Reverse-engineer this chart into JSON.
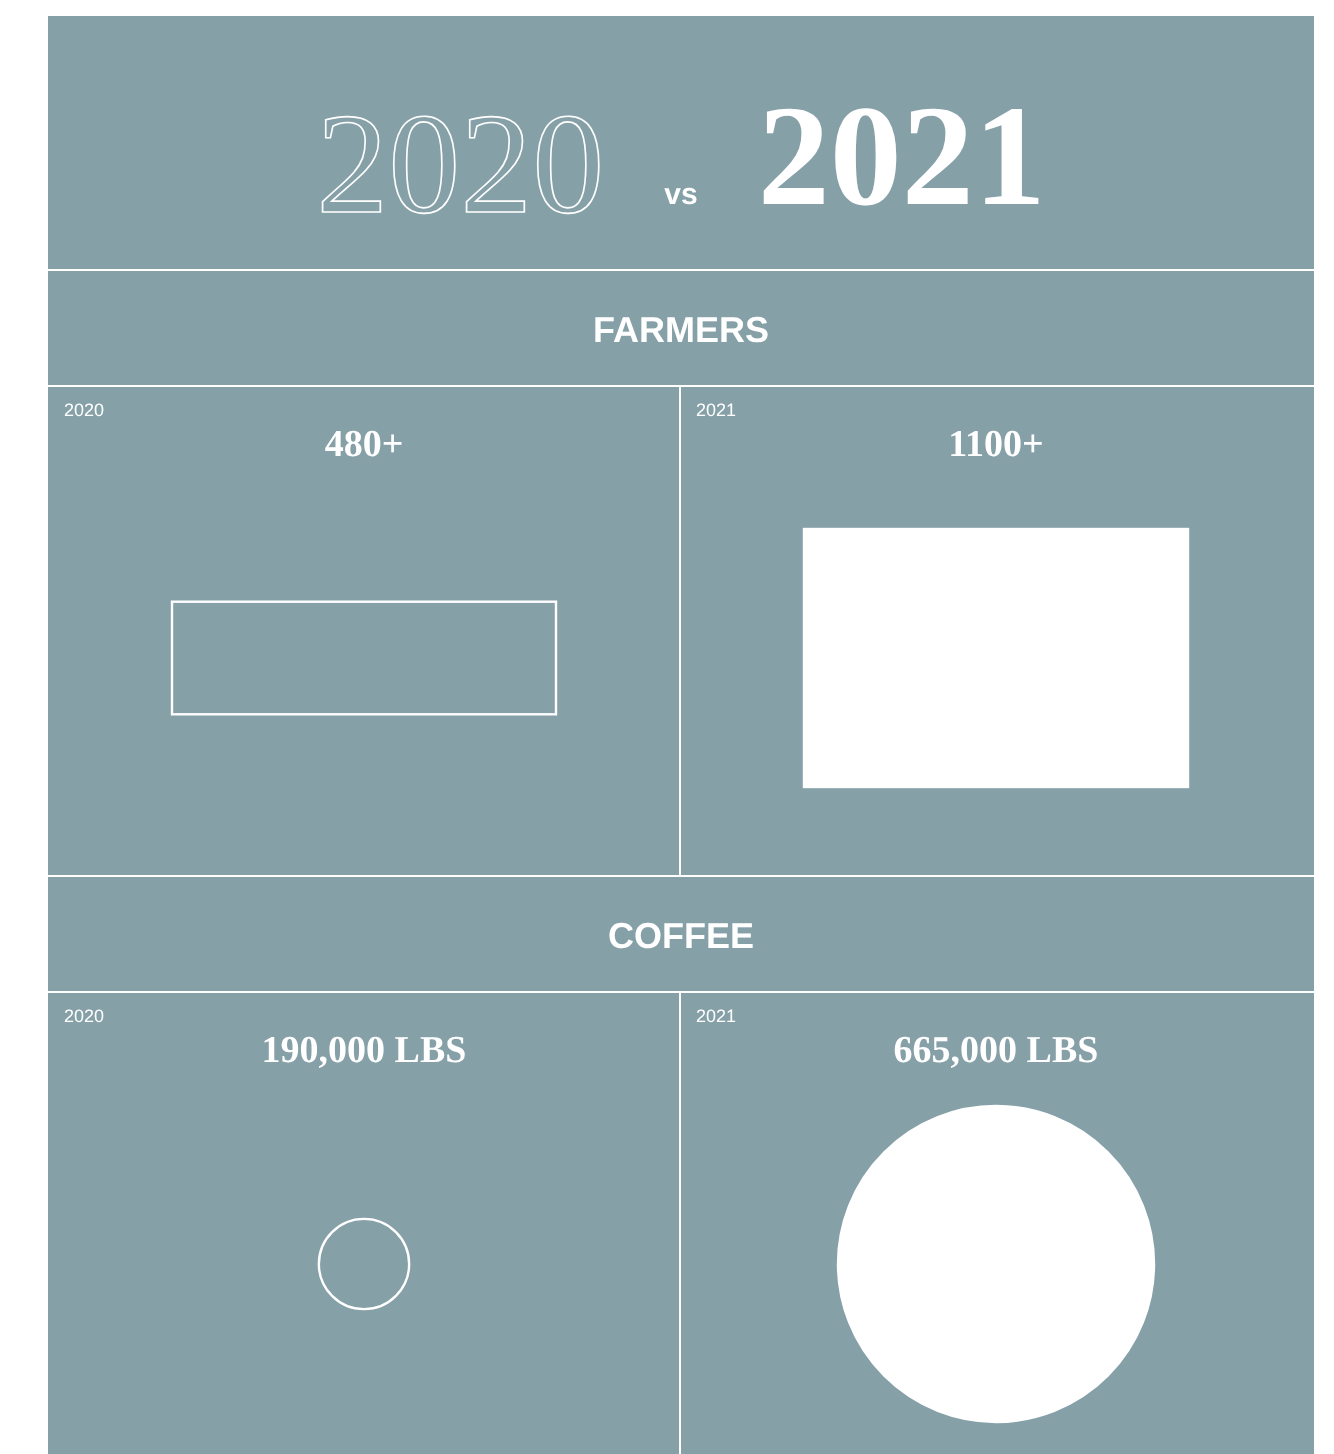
{
  "chart_data": [
    {
      "type": "other",
      "title": "2020 vs 2021",
      "subtitle": "FARMERS",
      "categories": [
        "2020",
        "2021"
      ],
      "values": [
        480,
        1100
      ],
      "value_labels": [
        "480+",
        "1100+"
      ],
      "colors": [
        "#ffffff",
        "#ffffff"
      ]
    },
    {
      "type": "other",
      "subtitle": "COFFEE",
      "categories": [
        "2020",
        "2021"
      ],
      "values": [
        190000,
        665000
      ],
      "value_labels": [
        "190,000 LBS",
        "665,000 LBS"
      ],
      "colors": [
        "#ffffff",
        "#ffffff"
      ]
    }
  ]
}
